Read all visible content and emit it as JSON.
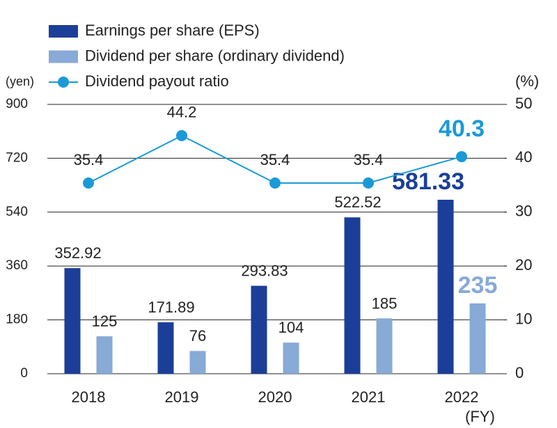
{
  "chart_data": {
    "type": "bar",
    "categories": [
      "2018",
      "2019",
      "2020",
      "2021",
      "2022"
    ],
    "x_label": "(FY)",
    "y_label": "(yen)",
    "y2_label": "(%)",
    "series": [
      {
        "name": "Earnings per share (EPS)",
        "color": "#1b3f98",
        "values": [
          352.92,
          171.89,
          293.83,
          522.52,
          581.33
        ]
      },
      {
        "name": "Dividend per share (ordinary dividend)",
        "color": "#87aad6",
        "values": [
          125,
          76,
          104,
          185,
          235
        ]
      },
      {
        "name": "Dividend payout ratio",
        "type": "line",
        "axis": "y2",
        "color": "#1b9ad7",
        "values": [
          35.4,
          44.2,
          35.4,
          35.4,
          40.3
        ]
      }
    ],
    "ylim": [
      0,
      900
    ],
    "yticks": [
      0,
      180,
      360,
      540,
      720,
      900
    ],
    "y2lim": [
      0,
      50
    ],
    "y2ticks": [
      0,
      10,
      20,
      30,
      40,
      50
    ],
    "grid": true,
    "highlight_last": true
  }
}
